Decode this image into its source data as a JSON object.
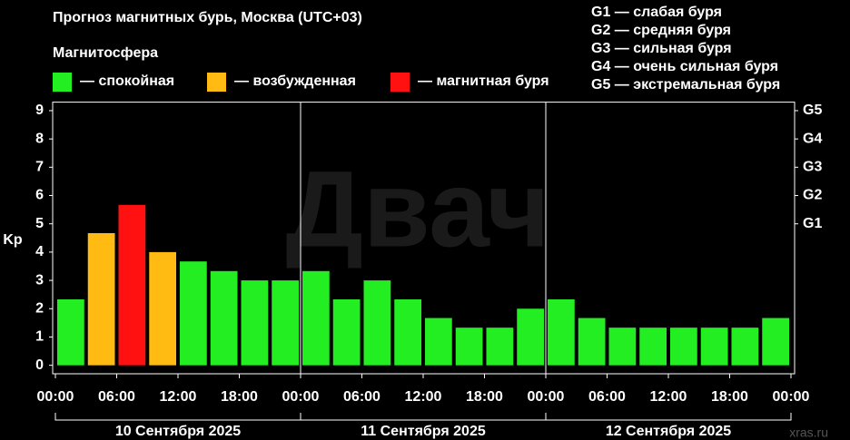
{
  "chart_data": {
    "type": "bar",
    "title": "Прогноз магнитных бурь, Москва (UTC+03)",
    "subtitle": "Магнитосфера",
    "legend": [
      {
        "name": "— спокойная",
        "color": "#22ee22"
      },
      {
        "name": "— возбужденная",
        "color": "#ffbb11"
      },
      {
        "name": "— магнитная буря",
        "color": "#ff1111"
      }
    ],
    "storm_scale": [
      "G1 — слабая буря",
      "G2 — средняя буря",
      "G3 — сильная буря",
      "G4 — очень сильная буря",
      "G5 — экстремальная буря"
    ],
    "ylabel": "Kp",
    "values": [
      2.33,
      4.67,
      5.67,
      4.0,
      3.67,
      3.33,
      3.0,
      3.0,
      3.33,
      2.33,
      3.0,
      2.33,
      1.67,
      1.33,
      1.33,
      2.0,
      2.33,
      1.67,
      1.33,
      1.33,
      1.33,
      1.33,
      1.33,
      1.67
    ],
    "colors": [
      "#22ee22",
      "#ffbb11",
      "#ff1111",
      "#ffbb11",
      "#22ee22",
      "#22ee22",
      "#22ee22",
      "#22ee22",
      "#22ee22",
      "#22ee22",
      "#22ee22",
      "#22ee22",
      "#22ee22",
      "#22ee22",
      "#22ee22",
      "#22ee22",
      "#22ee22",
      "#22ee22",
      "#22ee22",
      "#22ee22",
      "#22ee22",
      "#22ee22",
      "#22ee22",
      "#22ee22"
    ],
    "xlim": [
      0,
      72
    ],
    "xticks": [
      {
        "value": 0,
        "label": "00:00"
      },
      {
        "value": 6,
        "label": "06:00"
      },
      {
        "value": 12,
        "label": "12:00"
      },
      {
        "value": 18,
        "label": "18:00"
      },
      {
        "value": 24,
        "label": "00:00"
      },
      {
        "value": 30,
        "label": "06:00"
      },
      {
        "value": 36,
        "label": "12:00"
      },
      {
        "value": 42,
        "label": "18:00"
      },
      {
        "value": 48,
        "label": "00:00"
      },
      {
        "value": 54,
        "label": "06:00"
      },
      {
        "value": 60,
        "label": "12:00"
      },
      {
        "value": 66,
        "label": "18:00"
      },
      {
        "value": 72,
        "label": "00:00"
      }
    ],
    "ylim": [
      -0.3,
      9.3
    ],
    "yticks": [
      0,
      1,
      2,
      3,
      4,
      5,
      6,
      7,
      8,
      9
    ],
    "y2ticks": [
      {
        "value": 5,
        "label": "G1"
      },
      {
        "value": 6,
        "label": "G2"
      },
      {
        "value": 7,
        "label": "G3"
      },
      {
        "value": 8,
        "label": "G4"
      },
      {
        "value": 9,
        "label": "G5"
      }
    ],
    "days": [
      {
        "label": "10 Сентября 2025",
        "start": 0,
        "end": 24
      },
      {
        "label": "11 Сентября 2025",
        "start": 24,
        "end": 48
      },
      {
        "label": "12 Сентября 2025",
        "start": 48,
        "end": 72
      }
    ],
    "watermark": "Двач",
    "source": "xras.ru"
  }
}
